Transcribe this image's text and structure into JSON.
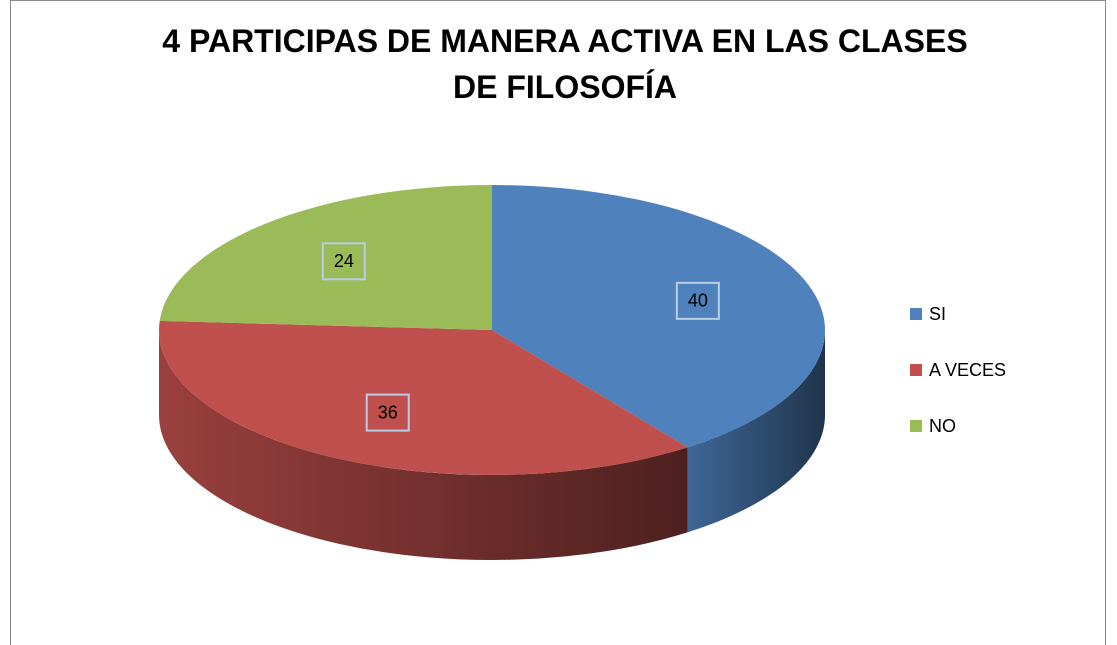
{
  "chart_data": {
    "type": "pie",
    "title": "4 PARTICIPAS DE MANERA ACTIVA  EN LAS CLASES DE FILOSOFÍA",
    "categories": [
      "SI",
      "A VECES",
      "NO"
    ],
    "values": [
      40,
      36,
      24
    ],
    "colors": [
      "#4f81bd",
      "#c0504d",
      "#9bbb59"
    ],
    "legend": "right"
  }
}
